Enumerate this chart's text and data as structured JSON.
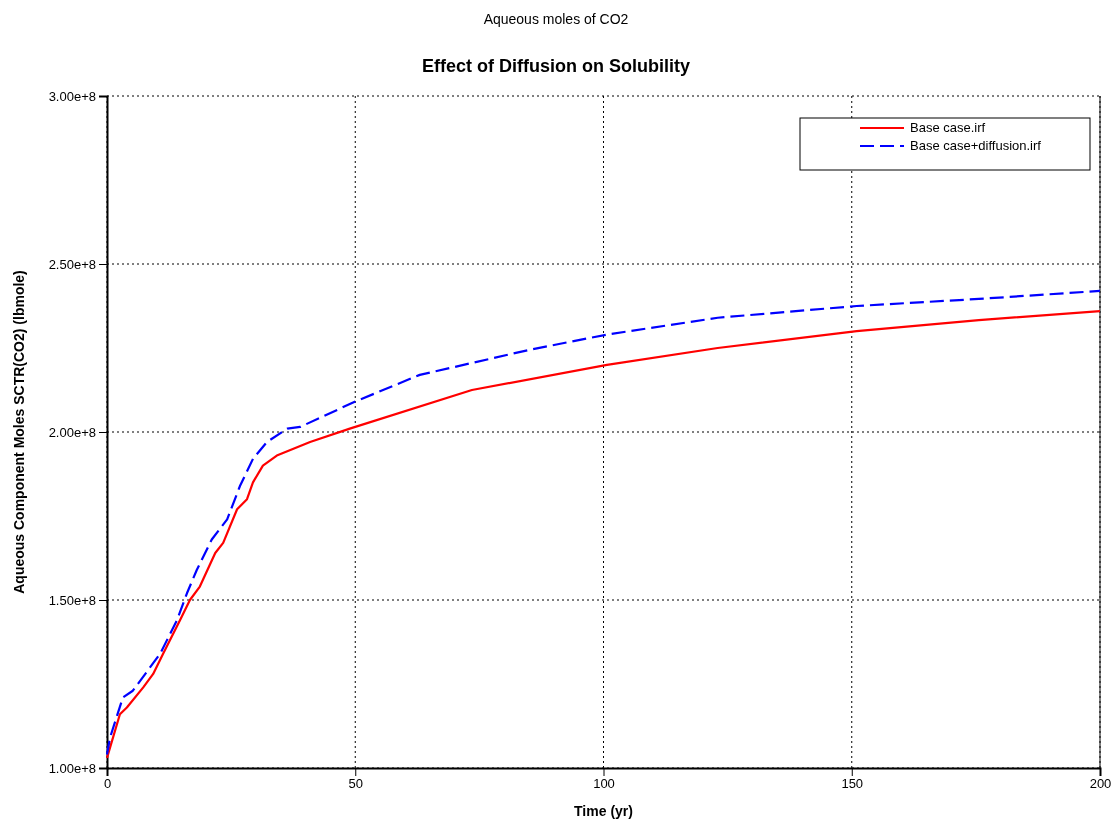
{
  "chart_data": {
    "type": "line",
    "subtitle": "Aqueous moles of CO2",
    "title": "Effect of Diffusion on Solubility",
    "xlabel": "Time (yr)",
    "ylabel": "Aqueous Component Moles SCTR(CO2) (lbmole)",
    "xlim": [
      0,
      200
    ],
    "xticks": [
      0,
      50,
      100,
      150,
      200
    ],
    "ylim": [
      100000000,
      300000000
    ],
    "yticks": [
      {
        "value": 100000000,
        "label": "1.00e+8"
      },
      {
        "value": 150000000,
        "label": "1.50e+8"
      },
      {
        "value": 200000000,
        "label": "2.00e+8"
      },
      {
        "value": 250000000,
        "label": "2.50e+8"
      },
      {
        "value": 300000000,
        "label": "3.00e+8"
      }
    ],
    "grid": true,
    "legend": "top right",
    "series": [
      {
        "name": "Base case.irf",
        "color": "#ff0000",
        "line_style": "solid",
        "x": [
          0,
          2.6,
          4,
          7.3,
          9.3,
          11.3,
          14.7,
          16.7,
          18.7,
          21.8,
          23.4,
          26.2,
          28.2,
          29.4,
          31.4,
          34.2,
          40.9,
          48.9,
          73.5,
          100.7,
          123,
          151,
          175.6,
          200
        ],
        "values": [
          103000000,
          116000000,
          118000000,
          124000000,
          128000000,
          134000000,
          144000000,
          150000000,
          154000000,
          164000000,
          167000000,
          177000000,
          180000000,
          185000000,
          190000000,
          193000000,
          197000000,
          201000000,
          212500000,
          220000000,
          225000000,
          230000000,
          233300000,
          236000000
        ]
      },
      {
        "name": "Base case+diffusion.irf",
        "color": "#0000ff",
        "line_style": "dashed",
        "x": [
          0,
          0.6,
          3.2,
          5.2,
          8.7,
          10.7,
          14.1,
          16.1,
          18.1,
          21.1,
          24.2,
          26.8,
          29.4,
          32.2,
          36.3,
          38.9,
          49.9,
          63,
          85.2,
          100.7,
          123,
          151,
          175.6,
          200
        ],
        "values": [
          104000000,
          109000000,
          121000000,
          123000000,
          130000000,
          134000000,
          144000000,
          152000000,
          159000000,
          168000000,
          174000000,
          184000000,
          192000000,
          197000000,
          201000000,
          201500000,
          209000000,
          217000000,
          224500000,
          229000000,
          234000000,
          237500000,
          239600000,
          242000000
        ]
      }
    ]
  }
}
